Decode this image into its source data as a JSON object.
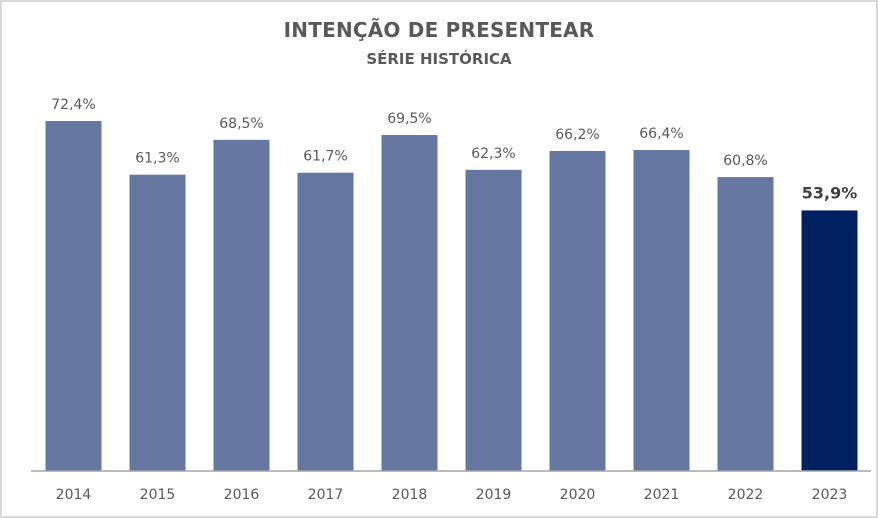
{
  "chart_data": {
    "type": "bar",
    "title": "INTENÇÃO DE PRESENTEAR",
    "subtitle": "SÉRIE HISTÓRICA",
    "xlabel": "",
    "ylabel": "",
    "categories": [
      "2014",
      "2015",
      "2016",
      "2017",
      "2018",
      "2019",
      "2020",
      "2021",
      "2022",
      "2023"
    ],
    "values": [
      72.4,
      61.3,
      68.5,
      61.7,
      69.5,
      62.3,
      66.2,
      66.4,
      60.8,
      53.9
    ],
    "data_labels": [
      "72,4%",
      "61,3%",
      "68,5%",
      "61,7%",
      "69,5%",
      "62,3%",
      "66,2%",
      "66,4%",
      "60,8%",
      "53,9%"
    ],
    "highlight_index": 9,
    "ylim": [
      0,
      72.4
    ],
    "grid": false,
    "legend": "none",
    "colors": {
      "bar": "#6577a0",
      "highlight": "#002060",
      "label": "#595959",
      "highlight_label": "#404040",
      "axis": "#a6a6a6"
    }
  }
}
